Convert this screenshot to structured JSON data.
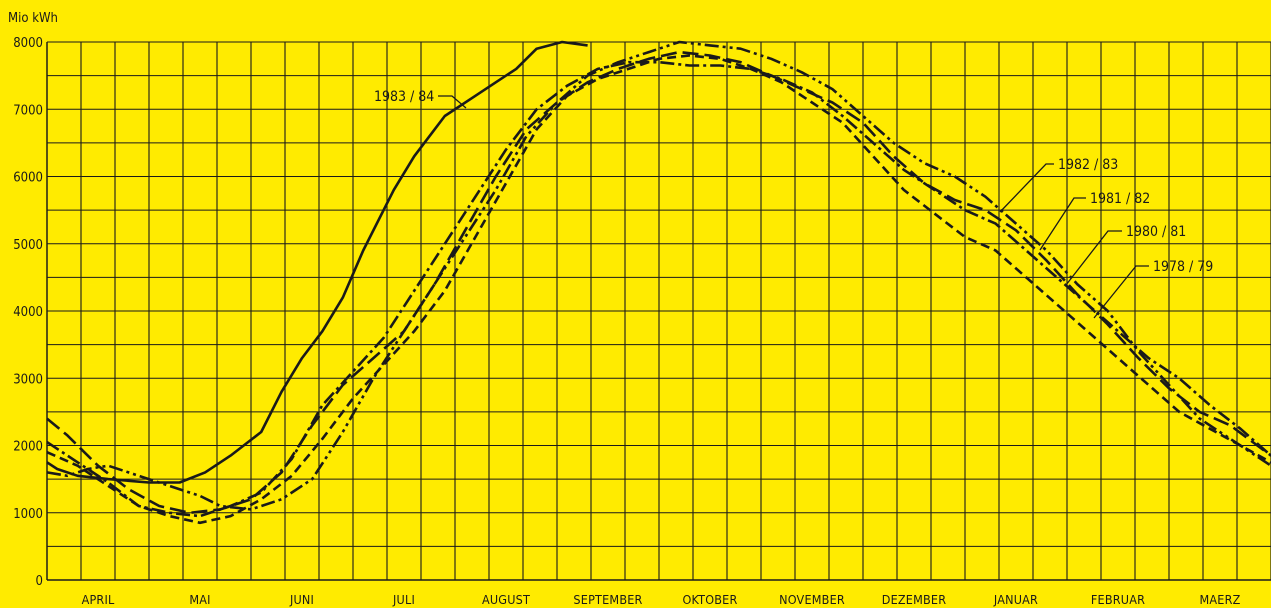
{
  "chart_data": {
    "type": "line",
    "ylabel": "Mio kWh",
    "ylim": [
      0,
      8000
    ],
    "yticks": [
      0,
      1000,
      2000,
      3000,
      4000,
      5000,
      6000,
      7000,
      8000
    ],
    "ytick_labels": [
      "0",
      "1000",
      "2000",
      "3000",
      "4000",
      "5000",
      "6000",
      "7000",
      "8000"
    ],
    "categories": [
      "APRIL",
      "MAI",
      "JUNI",
      "JULI",
      "AUGUST",
      "SEPTEMBER",
      "OKTOBER",
      "NOVEMBER",
      "DEZEMBER",
      "JANUAR",
      "FEBRUAR",
      "MAERZ"
    ],
    "xlim": [
      0,
      12
    ],
    "grid": true,
    "series": [
      {
        "name": "1983/84",
        "dash": "solid",
        "x": [
          0,
          0.1,
          0.3,
          0.6,
          1.0,
          1.3,
          1.55,
          1.8,
          2.1,
          2.3,
          2.5,
          2.7,
          2.9,
          3.1,
          3.4,
          3.6,
          3.9,
          4.2,
          4.4,
          4.6,
          4.8,
          5.05,
          5.3
        ],
        "y": [
          1750,
          1650,
          1550,
          1500,
          1450,
          1450,
          1600,
          1850,
          2200,
          2800,
          3300,
          3700,
          4200,
          4900,
          5800,
          6300,
          6900,
          7200,
          7400,
          7600,
          7900,
          8000,
          7950
        ]
      },
      {
        "name": "1982/83",
        "dash": "dashdotdot",
        "x": [
          0,
          0.2,
          0.4,
          0.6,
          0.9,
          1.2,
          1.5,
          1.7,
          2.0,
          2.3,
          2.6,
          2.9,
          3.2,
          3.5,
          3.8,
          4.1,
          4.4,
          4.7,
          5.0,
          5.3,
          5.6,
          5.9,
          6.2,
          6.5,
          6.8,
          7.1,
          7.4,
          7.7,
          8.0,
          8.3,
          8.6,
          8.9,
          9.2,
          9.5,
          9.8,
          10.1,
          10.4,
          10.7,
          11.0,
          11.3,
          11.6,
          12.0
        ],
        "y": [
          1600,
          1550,
          1650,
          1700,
          1550,
          1400,
          1250,
          1100,
          1050,
          1200,
          1500,
          2200,
          3000,
          3700,
          4400,
          5100,
          5800,
          6600,
          7100,
          7500,
          7700,
          7850,
          8000,
          7950,
          7900,
          7750,
          7550,
          7300,
          6900,
          6500,
          6200,
          6000,
          5700,
          5300,
          4900,
          4400,
          4000,
          3400,
          2900,
          2400,
          2100,
          1700
        ]
      },
      {
        "name": "1981/82",
        "dash": "longdash",
        "x": [
          0,
          0.2,
          0.5,
          0.8,
          1.1,
          1.4,
          1.7,
          2.0,
          2.3,
          2.6,
          2.9,
          3.2,
          3.5,
          3.8,
          4.1,
          4.4,
          4.7,
          5.0,
          5.3,
          5.6,
          5.9,
          6.2,
          6.5,
          6.8,
          7.1,
          7.4,
          7.7,
          8.0,
          8.3,
          8.6,
          8.9,
          9.2,
          9.5,
          9.8,
          10.1,
          10.4,
          10.7,
          11.0,
          11.3,
          11.6,
          12.0
        ],
        "y": [
          2400,
          2150,
          1700,
          1350,
          1100,
          1000,
          1050,
          1200,
          1600,
          2300,
          2900,
          3300,
          3700,
          4400,
          5200,
          6000,
          6700,
          7100,
          7400,
          7600,
          7750,
          7850,
          7800,
          7700,
          7500,
          7300,
          7100,
          6800,
          6300,
          5900,
          5650,
          5500,
          5200,
          4750,
          4250,
          3800,
          3300,
          2850,
          2500,
          2300,
          1850
        ]
      },
      {
        "name": "1980/81",
        "dash": "dashdot",
        "x": [
          0,
          0.3,
          0.6,
          0.9,
          1.2,
          1.5,
          1.8,
          2.1,
          2.4,
          2.7,
          3.0,
          3.3,
          3.6,
          3.9,
          4.2,
          4.5,
          4.8,
          5.1,
          5.4,
          5.7,
          6.0,
          6.3,
          6.6,
          6.9,
          7.2,
          7.5,
          7.8,
          8.1,
          8.4,
          8.7,
          9.0,
          9.3,
          9.6,
          9.9,
          10.2,
          10.5,
          10.8,
          11.1,
          11.4,
          11.7,
          12.0
        ],
        "y": [
          2050,
          1750,
          1450,
          1100,
          1000,
          950,
          1100,
          1300,
          1800,
          2600,
          3100,
          3600,
          4300,
          5000,
          5700,
          6400,
          7000,
          7350,
          7600,
          7700,
          7700,
          7650,
          7650,
          7600,
          7450,
          7250,
          6900,
          6500,
          6100,
          5800,
          5500,
          5300,
          4900,
          4500,
          4100,
          3700,
          3300,
          3000,
          2600,
          2250,
          1850
        ]
      },
      {
        "name": "1978/79",
        "dash": "mediumdash",
        "x": [
          0,
          0.3,
          0.6,
          0.9,
          1.2,
          1.5,
          1.8,
          2.1,
          2.4,
          2.7,
          3.0,
          3.3,
          3.6,
          3.9,
          4.2,
          4.5,
          4.8,
          5.1,
          5.4,
          5.7,
          6.0,
          6.3,
          6.6,
          6.9,
          7.2,
          7.5,
          7.8,
          8.1,
          8.4,
          8.7,
          9.0,
          9.3,
          9.6,
          9.9,
          10.2,
          10.5,
          10.8,
          11.1,
          11.4,
          11.7,
          12.0
        ],
        "y": [
          1900,
          1700,
          1400,
          1100,
          950,
          850,
          950,
          1200,
          1550,
          2100,
          2700,
          3200,
          3700,
          4300,
          5100,
          5900,
          6700,
          7200,
          7450,
          7600,
          7750,
          7800,
          7750,
          7600,
          7400,
          7100,
          6800,
          6300,
          5800,
          5450,
          5100,
          4900,
          4500,
          4100,
          3700,
          3300,
          2900,
          2500,
          2250,
          2000,
          1750
        ]
      }
    ],
    "series_labels": [
      {
        "series": "1983/84",
        "text": "1983 / 84"
      },
      {
        "series": "1982/83",
        "text": "1982 / 83"
      },
      {
        "series": "1981/82",
        "text": "1981 / 82"
      },
      {
        "series": "1980/81",
        "text": "1980 / 81"
      },
      {
        "series": "1978/79",
        "text": "1978 / 79"
      }
    ]
  }
}
